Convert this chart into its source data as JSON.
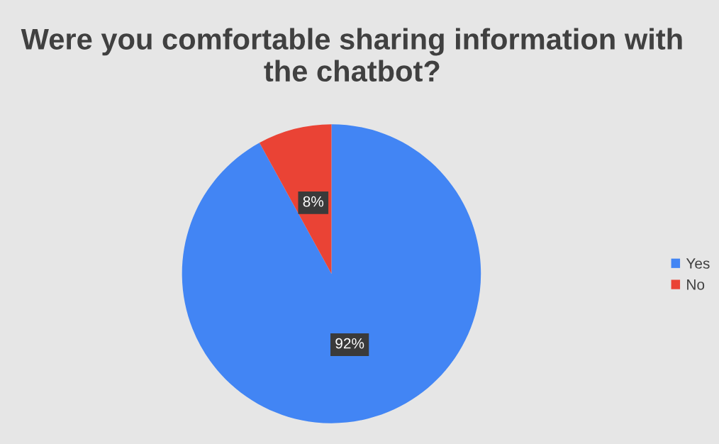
{
  "chart_data": {
    "type": "pie",
    "title": "Were you comfortable sharing information with the chatbot?",
    "categories": [
      "Yes",
      "No"
    ],
    "values": [
      92,
      8
    ],
    "colors": [
      "#4285f4",
      "#ea4335"
    ],
    "value_labels": [
      "92%",
      "8%"
    ],
    "legend": "right"
  }
}
